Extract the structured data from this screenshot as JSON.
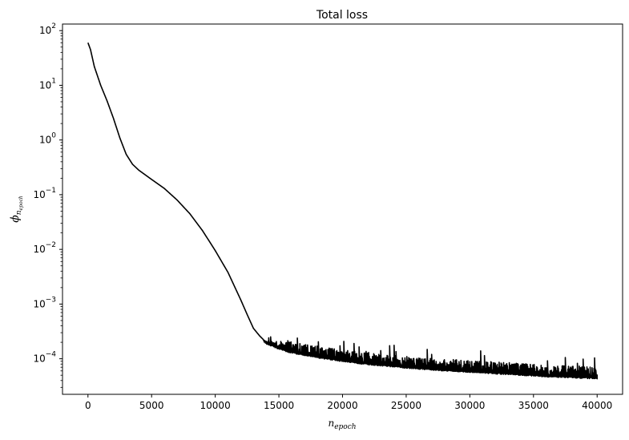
{
  "chart_data": {
    "type": "line",
    "title": "Total loss",
    "xlabel": {
      "base": "n",
      "sub": "epoch"
    },
    "ylabel": {
      "base": "ϕ",
      "sub1": "n",
      "sub2": "epoch"
    },
    "xlim": [
      -2000,
      42000
    ],
    "ylim_log10": [
      -4.65,
      2.12
    ],
    "yscale": "log",
    "grid": false,
    "legend": "none",
    "line_color": "#000000",
    "x_ticks": [
      0,
      5000,
      10000,
      15000,
      20000,
      25000,
      30000,
      35000,
      40000
    ],
    "x_tick_labels": [
      "0",
      "5000",
      "10000",
      "15000",
      "20000",
      "25000",
      "30000",
      "35000",
      "40000"
    ],
    "y_tick_exponents": [
      -4,
      -3,
      -2,
      -1,
      0,
      1,
      2
    ],
    "y_tick_labels": [
      "10",
      "10",
      "10",
      "10",
      "10",
      "10",
      "10"
    ],
    "y_tick_label_exponents": [
      "−4",
      "−3",
      "−2",
      "−1",
      "0",
      "1",
      "2"
    ],
    "series": [
      {
        "name": "total loss",
        "x": [
          0,
          200,
          500,
          1000,
          1500,
          2000,
          2500,
          3000,
          3500,
          4000,
          5000,
          6000,
          7000,
          8000,
          9000,
          10000,
          11000,
          12000,
          12500,
          13000,
          13500,
          14000,
          15000,
          16000,
          18000,
          20000,
          22000,
          25000,
          28000,
          30000,
          33000,
          36000,
          40000
        ],
        "y": [
          60,
          45,
          22,
          10,
          5.2,
          2.5,
          1.1,
          0.55,
          0.36,
          0.28,
          0.19,
          0.13,
          0.08,
          0.045,
          0.022,
          0.0095,
          0.0038,
          0.0012,
          0.00065,
          0.00036,
          0.00026,
          0.0002,
          0.00016,
          0.000135,
          0.000112,
          9.5e-05,
          8.3e-05,
          7.2e-05,
          6.4e-05,
          6e-05,
          5.5e-05,
          5e-05,
          4.6e-05
        ],
        "noise_start": 13800,
        "noise_peak_ratio": 2.4
      }
    ]
  }
}
